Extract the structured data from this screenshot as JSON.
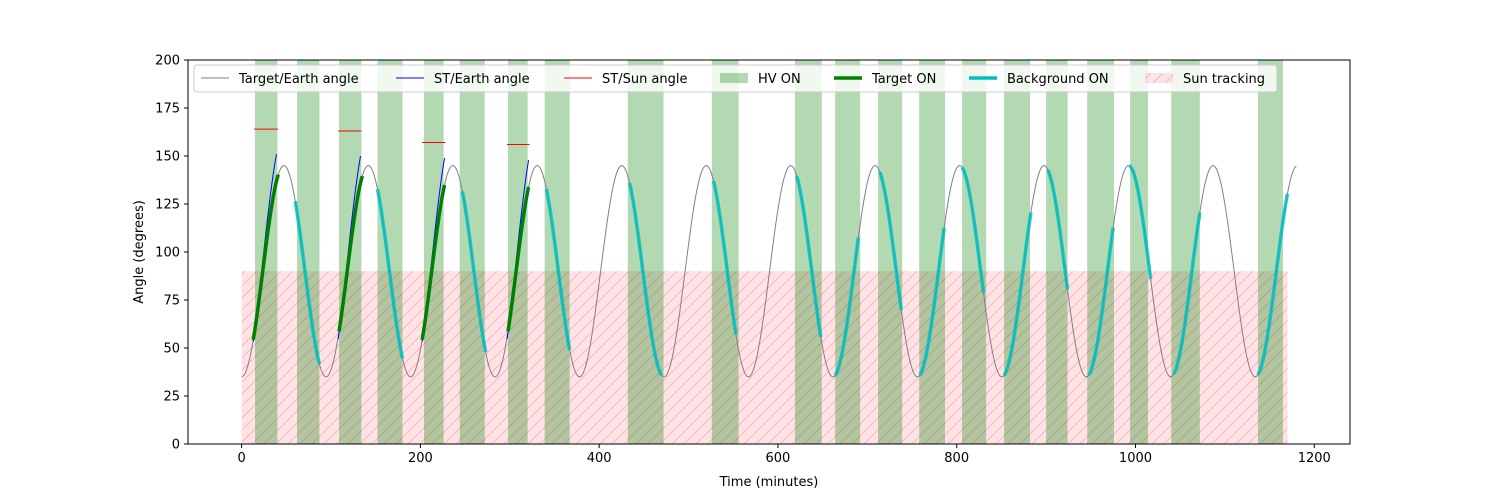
{
  "chart_data": {
    "type": "line",
    "title": "",
    "xlabel": "Time (minutes)",
    "ylabel": "Angle (degrees)",
    "xlim": [
      -60,
      1240
    ],
    "ylim": [
      0,
      200
    ],
    "x_ticks": [
      0,
      200,
      400,
      600,
      800,
      1000,
      1200
    ],
    "y_ticks": [
      0,
      25,
      50,
      75,
      100,
      125,
      150,
      175,
      200
    ],
    "grid": false,
    "legend_position": "top",
    "orbit": {
      "period_minutes": 94.5,
      "mean_angle": 90,
      "amplitude": 55,
      "phase_minutes": 0,
      "t_end": 1180
    },
    "series": [
      {
        "name": "Target/Earth angle",
        "color": "#808080",
        "style": "thin-line"
      },
      {
        "name": "ST/Earth angle",
        "color": "#0000ff",
        "style": "thin-line",
        "segments": [
          {
            "t_start": 13,
            "t_end": 39
          },
          {
            "t_start": 108,
            "t_end": 133
          },
          {
            "t_start": 202,
            "t_end": 227
          },
          {
            "t_start": 297,
            "t_end": 321
          }
        ]
      },
      {
        "name": "ST/Sun angle",
        "color": "#ff0000",
        "style": "short-line",
        "segments": [
          {
            "t_start": 14,
            "t_end": 41,
            "angle": 164
          },
          {
            "t_start": 108,
            "t_end": 134,
            "angle": 163
          },
          {
            "t_start": 202,
            "t_end": 228,
            "angle": 157
          },
          {
            "t_start": 297,
            "t_end": 322,
            "angle": 156
          }
        ]
      },
      {
        "name": "HV ON",
        "color": "#008000",
        "style": "span",
        "opacity": 0.3,
        "intervals": [
          [
            15,
            40
          ],
          [
            62,
            87
          ],
          [
            109,
            134
          ],
          [
            152,
            180
          ],
          [
            204,
            226
          ],
          [
            244,
            272
          ],
          [
            298,
            320
          ],
          [
            339,
            367
          ],
          [
            432,
            472
          ],
          [
            526,
            556
          ],
          [
            619,
            649
          ],
          [
            664,
            692
          ],
          [
            712,
            739
          ],
          [
            758,
            787
          ],
          [
            806,
            833
          ],
          [
            853,
            882
          ],
          [
            900,
            924
          ],
          [
            946,
            976
          ],
          [
            994,
            1014
          ],
          [
            1040,
            1072
          ],
          [
            1137,
            1165
          ]
        ]
      },
      {
        "name": "Target ON",
        "color": "#008000",
        "style": "thick-line",
        "intervals": [
          [
            13,
            41
          ],
          [
            109,
            135
          ],
          [
            202,
            227
          ],
          [
            298,
            321
          ]
        ]
      },
      {
        "name": "Background ON",
        "color": "#00bfbf",
        "style": "thick-line",
        "intervals": [
          [
            60,
            87
          ],
          [
            152,
            180
          ],
          [
            247,
            273
          ],
          [
            341,
            367
          ],
          [
            434,
            470
          ],
          [
            528,
            553
          ],
          [
            621,
            648
          ],
          [
            664,
            690
          ],
          [
            714,
            738
          ],
          [
            759,
            786
          ],
          [
            806,
            830
          ],
          [
            853,
            883
          ],
          [
            902,
            924
          ],
          [
            948,
            975
          ],
          [
            993,
            1017
          ],
          [
            1043,
            1072
          ],
          [
            1137,
            1170
          ]
        ]
      },
      {
        "name": "Sun tracking",
        "color": "#ffb6c1",
        "style": "hatched-span",
        "ymax": 90,
        "interval": [
          0,
          1170
        ]
      }
    ]
  }
}
